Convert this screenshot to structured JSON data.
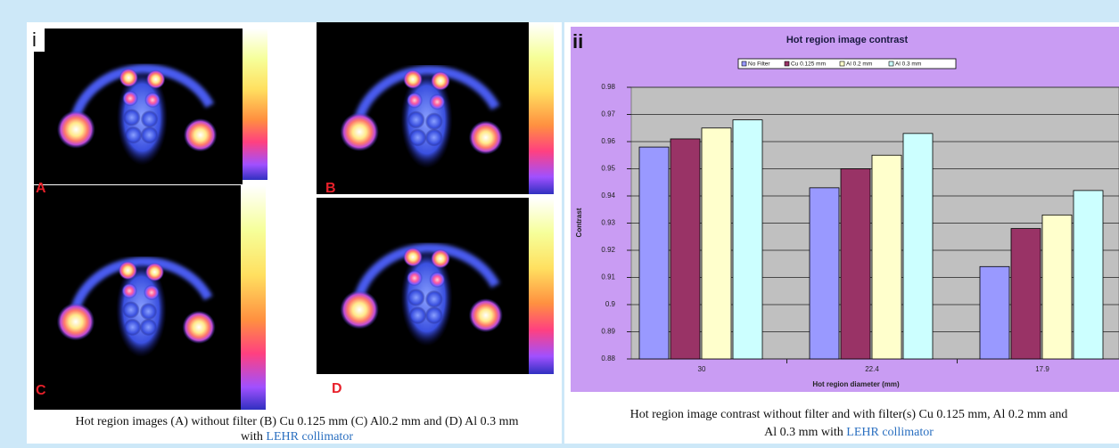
{
  "panel_i": {
    "label": "i",
    "image_labels": [
      "A",
      "B",
      "C",
      "D"
    ],
    "caption": {
      "line1": "Hot region images (A) without filter (B) Cu 0.125 mm (C) Al0.2 mm and (D) Al 0.3 mm",
      "line2_prefix": "with",
      "link": "LEHR collimator"
    }
  },
  "panel_ii": {
    "label": "ii",
    "caption": {
      "line1": "Hot region image contrast without filter and with filter(s) Cu 0.125 mm, Al 0.2 mm and",
      "line2_prefix": "Al 0.3 mm with",
      "link": "LEHR collimator"
    }
  },
  "chart_data": {
    "type": "bar",
    "title": "Hot region image contrast",
    "x_label": "Hot region diameter (mm)",
    "y_label": "Contrast",
    "categories": [
      "30",
      "22.4",
      "17.9"
    ],
    "series": [
      {
        "name": "No Filter",
        "color": "#9999ff",
        "values": [
          0.958,
          0.943,
          0.914
        ]
      },
      {
        "name": "Cu 0.125 mm",
        "color": "#993366",
        "values": [
          0.961,
          0.95,
          0.928
        ]
      },
      {
        "name": "Al 0.2 mm",
        "color": "#ffffcc",
        "values": [
          0.965,
          0.955,
          0.933
        ]
      },
      {
        "name": "Al 0.3 mm",
        "color": "#ccffff",
        "values": [
          0.968,
          0.963,
          0.942
        ]
      }
    ],
    "ylim": [
      0.88,
      0.98
    ],
    "yticks": [
      0.88,
      0.89,
      0.9,
      0.91,
      0.92,
      0.93,
      0.94,
      0.95,
      0.96,
      0.97,
      0.98
    ],
    "grid": true,
    "legend": "top"
  }
}
